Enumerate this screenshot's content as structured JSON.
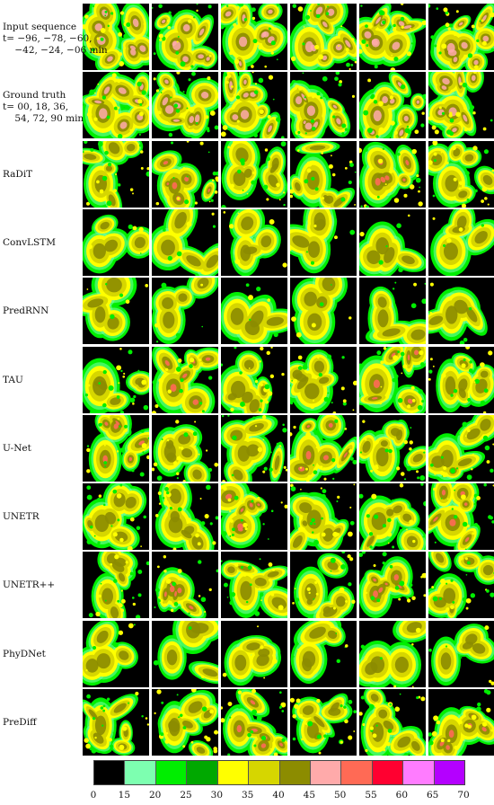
{
  "rows": [
    {
      "label": "Input sequence\nt= −96, −78, −60,\n    −42, −24, −06 min",
      "kind": "input"
    },
    {
      "label": "Ground truth\nt= 00, 18, 36,\n    54, 72, 90 min",
      "kind": "truth"
    },
    {
      "label": "RaDiT",
      "kind": "model"
    },
    {
      "label": "ConvLSTM",
      "kind": "smooth"
    },
    {
      "label": "PredRNN",
      "kind": "smooth"
    },
    {
      "label": "TAU",
      "kind": "model"
    },
    {
      "label": "U-Net",
      "kind": "model"
    },
    {
      "label": "UNETR",
      "kind": "model"
    },
    {
      "label": "UNETR++",
      "kind": "model"
    },
    {
      "label": "PhyDNet",
      "kind": "smooth"
    },
    {
      "label": "PreDiff",
      "kind": "model"
    }
  ],
  "frames_per_row": 6,
  "colorbar": {
    "colors": [
      "#000000",
      "#7dffb0",
      "#00ee00",
      "#00a800",
      "#ffff00",
      "#d6d600",
      "#8c8c00",
      "#ffaaaa",
      "#ff6a55",
      "#ff0030",
      "#ff7cff",
      "#b400ff"
    ],
    "ticks": [
      "0",
      "15",
      "20",
      "25",
      "30",
      "35",
      "40",
      "45",
      "50",
      "55",
      "60",
      "65",
      "70"
    ]
  }
}
